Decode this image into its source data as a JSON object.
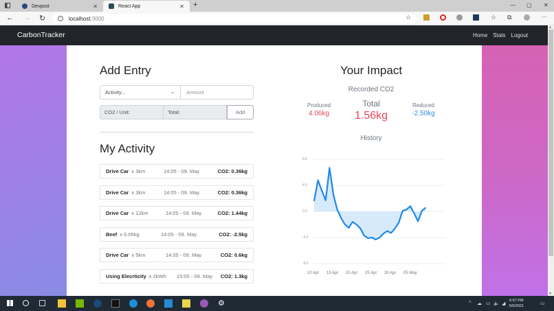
{
  "browser": {
    "tabs": [
      {
        "label": "Devpost",
        "active": false
      },
      {
        "label": "React App",
        "active": true
      }
    ],
    "url_host": "localhost",
    "url_port": ":3000"
  },
  "navbar": {
    "brand": "CarbonTracker",
    "links": [
      "Home",
      "Stats",
      "Logout"
    ]
  },
  "add_entry": {
    "title": "Add Entry",
    "activity_select": "Activity...",
    "amount_placeholder": "Amount",
    "co2_unit_label": "CO2 / Unit:",
    "total_label": "Total:",
    "add_button": "Add"
  },
  "activity": {
    "title": "My Activity",
    "items": [
      {
        "name": "Drive Car",
        "qty": "x 3km",
        "time": "14:05 - 09. May",
        "co2": "CO2: 0.36kg"
      },
      {
        "name": "Drive Car",
        "qty": "x 3km",
        "time": "14:05 - 09. May",
        "co2": "CO2: 0.36kg"
      },
      {
        "name": "Drive Car",
        "qty": "x 12km",
        "time": "14:05 - 09. May",
        "co2": "CO2: 1.44kg"
      },
      {
        "name": "Beef",
        "qty": "x 0.05kg",
        "time": "14:05 - 09. May",
        "co2": "CO2: -2.5kg"
      },
      {
        "name": "Drive Car",
        "qty": "x 5km",
        "time": "14:05 - 09. May",
        "co2": "CO2: 0.6kg"
      },
      {
        "name": "Using Elecrticity",
        "qty": "x 2kWh",
        "time": "15:05 - 09. May",
        "co2": "CO2: 1.3kg"
      }
    ]
  },
  "impact": {
    "title": "Your Impact",
    "recorded_label": "Recorded CO2",
    "produced_label": "Produced",
    "produced_value": "4.06kg",
    "total_label": "Total",
    "total_value": "1.56kg",
    "reduced_label": "Reduced",
    "reduced_value": "-2.50kg",
    "history_label": "History"
  },
  "colors": {
    "produced": "#e2475b",
    "reduced": "#2f8ee0",
    "line": "#1e88e5",
    "fill": "#cfe6fb",
    "navbar": "#212529"
  },
  "chart_data": {
    "type": "area",
    "title": "History",
    "xlabel": "",
    "ylabel": "",
    "x_tick_labels": [
      "10 Apr",
      "15 Apr",
      "20 Apr",
      "25 Apr",
      "30 Apr",
      "05 May"
    ],
    "y_tick_labels": [
      "8.0",
      "4.0",
      "0.0",
      "-4.0",
      "-8.0"
    ],
    "ylim": [
      -8,
      8
    ],
    "grid": true,
    "legend": false,
    "x": [
      "10 Apr",
      "11 Apr",
      "12 Apr",
      "13 Apr",
      "14 Apr",
      "15 Apr",
      "16 Apr",
      "17 Apr",
      "18 Apr",
      "19 Apr",
      "20 Apr",
      "21 Apr",
      "22 Apr",
      "23 Apr",
      "24 Apr",
      "25 Apr",
      "26 Apr",
      "27 Apr",
      "28 Apr",
      "29 Apr",
      "30 Apr",
      "01 May",
      "02 May",
      "03 May",
      "04 May",
      "05 May",
      "06 May",
      "07 May",
      "08 May",
      "09 May"
    ],
    "series": [
      {
        "name": "CO2",
        "values": [
          1.6,
          4.8,
          3.2,
          1.7,
          6.7,
          2.6,
          0.3,
          -1.0,
          -2.0,
          -2.5,
          -1.6,
          -2.0,
          -2.6,
          -3.7,
          -4.1,
          -4.0,
          -4.3,
          -4.0,
          -3.4,
          -3.0,
          -3.3,
          -2.6,
          -1.7,
          0.1,
          0.3,
          0.8,
          -0.3,
          -1.5,
          0.1,
          0.6
        ]
      }
    ]
  },
  "taskbar": {
    "time": "6:57 PM",
    "date": "5/9/2021"
  }
}
